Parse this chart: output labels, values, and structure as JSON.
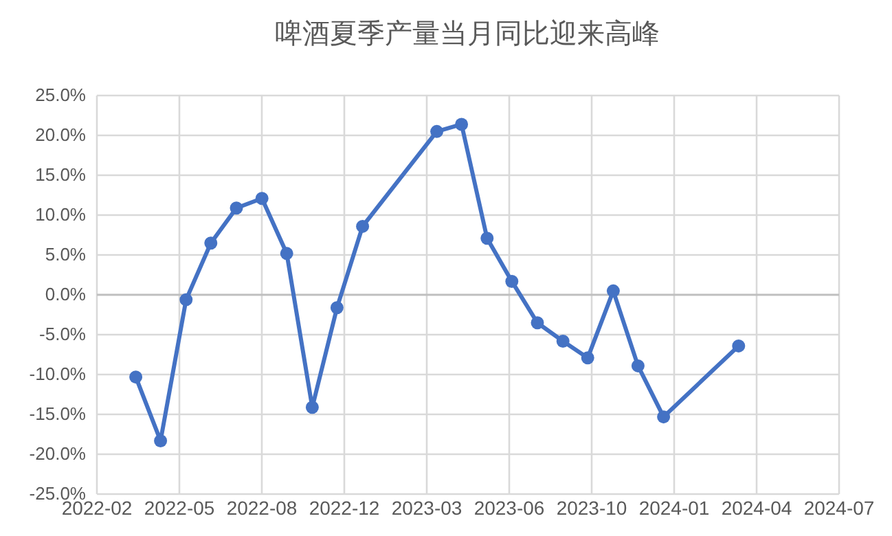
{
  "chart_data": {
    "type": "line",
    "title": "啤酒夏季产量当月同比迎来高峰",
    "x": [
      "2022-03-31",
      "2022-04-30",
      "2022-05-31",
      "2022-06-30",
      "2022-07-31",
      "2022-08-31",
      "2022-09-30",
      "2022-10-31",
      "2022-11-30",
      "2022-12-31",
      "2023-03-31",
      "2023-04-30",
      "2023-05-31",
      "2023-06-30",
      "2023-07-31",
      "2023-08-31",
      "2023-09-30",
      "2023-10-31",
      "2023-11-30",
      "2023-12-31",
      "2024-03-31"
    ],
    "series": [
      {
        "color": "#4472c4",
        "values": [
          -10.4,
          -18.4,
          -0.7,
          6.4,
          10.8,
          12.0,
          5.1,
          -14.2,
          -1.7,
          8.5,
          20.4,
          21.3,
          7.0,
          1.6,
          -3.6,
          -5.9,
          -8.0,
          0.4,
          -9.0,
          -15.4,
          -6.5
        ]
      }
    ],
    "xlim": [
      "2022-02-11",
      "2024-07-30"
    ],
    "xticks": [
      {
        "value": "2022-02-11",
        "label": "2022-02"
      },
      {
        "value": "2022-05-22",
        "label": "2022-05"
      },
      {
        "value": "2022-08-30",
        "label": "2022-08"
      },
      {
        "value": "2022-12-08",
        "label": "2022-12"
      },
      {
        "value": "2023-03-18",
        "label": "2023-03"
      },
      {
        "value": "2023-06-26",
        "label": "2023-06"
      },
      {
        "value": "2023-10-04",
        "label": "2023-10"
      },
      {
        "value": "2024-01-12",
        "label": "2024-01"
      },
      {
        "value": "2024-04-21",
        "label": "2024-04"
      },
      {
        "value": "2024-07-30",
        "label": "2024-07"
      }
    ],
    "ylim": [
      -25,
      25
    ],
    "yticks": [
      {
        "value": -25,
        "label": "-25.0%"
      },
      {
        "value": -20,
        "label": "-20.0%"
      },
      {
        "value": -15,
        "label": "-15.0%"
      },
      {
        "value": -10,
        "label": "-10.0%"
      },
      {
        "value": -5,
        "label": "-5.0%"
      },
      {
        "value": 0,
        "label": "0.0%"
      },
      {
        "value": 5,
        "label": "5.0%"
      },
      {
        "value": 10,
        "label": "10.0%"
      },
      {
        "value": 15,
        "label": "15.0%"
      },
      {
        "value": 20,
        "label": "20.0%"
      },
      {
        "value": 25,
        "label": "25.0%"
      }
    ],
    "grid": true,
    "marker": "circle",
    "line_style": "solid"
  }
}
